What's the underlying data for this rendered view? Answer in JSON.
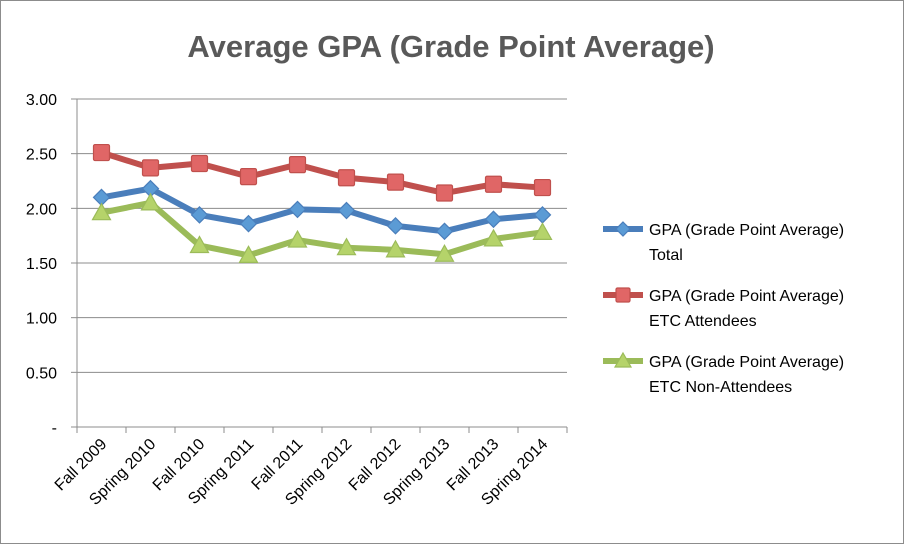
{
  "chart_data": {
    "type": "line",
    "title": "Average GPA (Grade Point Average)",
    "categories": [
      "Fall 2009",
      "Spring 2010",
      "Fall 2010",
      "Spring 2011",
      "Fall 2011",
      "Spring 2012",
      "Fall 2012",
      "Spring 2013",
      "Fall 2013",
      "Spring 2014"
    ],
    "y_ticks": [
      "-",
      "0.50",
      "1.00",
      "1.50",
      "2.00",
      "2.50",
      "3.00"
    ],
    "ylim": [
      0,
      3
    ],
    "grid": "horizontal",
    "legend_position": "right",
    "series": [
      {
        "name_lines": [
          "GPA (Grade Point Average)",
          "Total"
        ],
        "color": "#4a7ebb",
        "marker": "diamond",
        "marker_fill": "#5b9bd5",
        "values": [
          2.1,
          2.18,
          1.94,
          1.86,
          1.99,
          1.98,
          1.84,
          1.79,
          1.9,
          1.94
        ]
      },
      {
        "name_lines": [
          "GPA (Grade Point Average)",
          "ETC Attendees"
        ],
        "color": "#c0504d",
        "marker": "square",
        "marker_fill": "#e06666",
        "values": [
          2.51,
          2.37,
          2.41,
          2.29,
          2.4,
          2.28,
          2.24,
          2.14,
          2.22,
          2.19
        ]
      },
      {
        "name_lines": [
          "GPA (Grade Point Average)",
          "ETC Non-Attendees"
        ],
        "color": "#9bbb59",
        "marker": "triangle",
        "marker_fill": "#b5d36a",
        "values": [
          1.96,
          2.05,
          1.66,
          1.57,
          1.71,
          1.64,
          1.62,
          1.58,
          1.72,
          1.78
        ]
      }
    ]
  }
}
